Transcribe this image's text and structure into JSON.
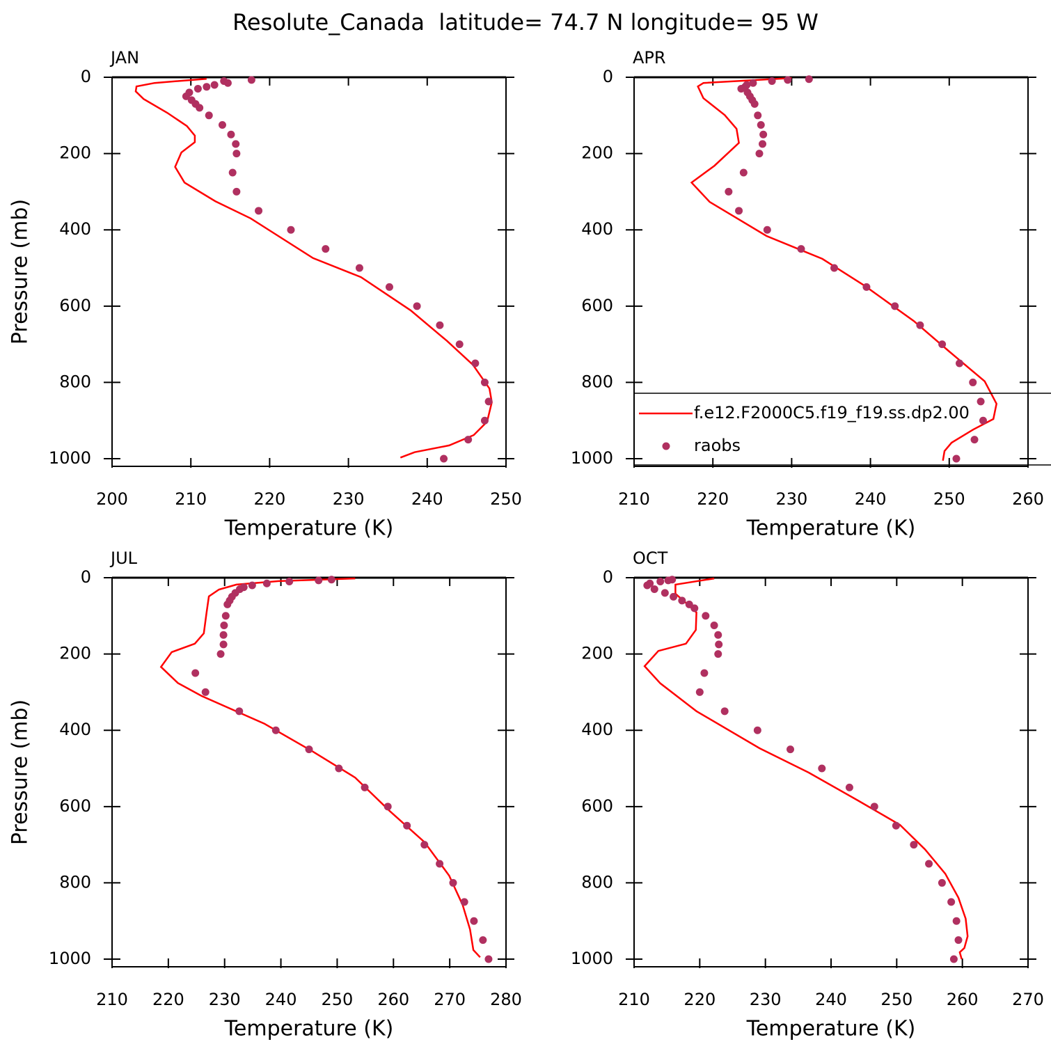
{
  "title": "Resolute_Canada  latitude= 74.7 N longitude= 95 W",
  "chart_data": [
    {
      "type": "line",
      "title": "JAN",
      "xlabel": "Temperature (K)",
      "ylabel": "Pressure (mb)",
      "xlim": [
        200,
        250
      ],
      "xticks": [
        200,
        210,
        220,
        230,
        240,
        250
      ],
      "ylim": [
        0,
        1020
      ],
      "yticks": [
        0,
        200,
        400,
        600,
        800,
        1000
      ],
      "y_inverted": true,
      "series": [
        {
          "color": "#ff0000",
          "mode": "line",
          "x": [
            212.0,
            205.4,
            203.1,
            203.0,
            204.0,
            207.0,
            209.5,
            210.5,
            210.5,
            208.8,
            208.0,
            209.2,
            213.1,
            217.6,
            225.5,
            231.6,
            237.9,
            242.5,
            245.8,
            247.9,
            248.2,
            247.6,
            245.9,
            242.8,
            238.4,
            236.6
          ],
          "y": [
            4,
            15,
            24,
            37,
            57,
            93,
            128,
            153,
            170,
            197,
            235,
            276,
            325,
            370,
            474,
            524,
            611,
            691,
            754,
            816,
            852,
            903,
            938,
            965,
            983,
            997
          ]
        },
        {
          "color": "#b03060",
          "mode": "markers",
          "x": [
            217.7,
            214.2,
            214.7,
            213.0,
            212.0,
            210.9,
            209.8,
            209.4,
            210.1,
            210.6,
            211.1,
            212.3,
            214.0,
            215.1,
            215.7,
            215.8,
            215.3,
            215.8,
            218.6,
            222.7,
            227.1,
            231.4,
            235.2,
            238.7,
            241.6,
            244.1,
            246.1,
            247.3,
            247.8,
            247.3,
            245.2,
            242.1
          ],
          "y": [
            7,
            10,
            15,
            20,
            25,
            30,
            40,
            50,
            60,
            70,
            80,
            100,
            125,
            150,
            175,
            200,
            250,
            300,
            350,
            400,
            450,
            500,
            550,
            600,
            650,
            700,
            750,
            800,
            850,
            900,
            950,
            1000
          ]
        }
      ]
    },
    {
      "type": "line",
      "title": "APR",
      "xlabel": "Temperature (K)",
      "xlim": [
        210,
        260
      ],
      "xticks": [
        210,
        220,
        230,
        240,
        250,
        260
      ],
      "ylim": [
        0,
        1020
      ],
      "yticks": [
        0,
        200,
        400,
        600,
        800,
        1000
      ],
      "y_inverted": true,
      "legend": "bottom",
      "series": [
        {
          "name": "f.e12.F2000C5.f19_f19.ss.dp2.00",
          "color": "#ff0000",
          "mode": "line",
          "x": [
            230.0,
            218.8,
            218.1,
            218.8,
            221.5,
            223.0,
            223.3,
            220.2,
            217.3,
            219.6,
            226.8,
            233.9,
            239.3,
            245.5,
            250.0,
            254.5,
            256.0,
            255.6,
            253.1,
            250.3,
            249.4,
            249.2
          ],
          "y": [
            2,
            15,
            24,
            55,
            99,
            135,
            172,
            232,
            276,
            327,
            416,
            476,
            547,
            639,
            719,
            797,
            856,
            896,
            923,
            958,
            980,
            1005
          ]
        },
        {
          "name": "raobs",
          "color": "#b03060",
          "mode": "markers",
          "x": [
            232.2,
            229.5,
            227.5,
            225.1,
            224.3,
            224.1,
            223.6,
            224.4,
            224.7,
            225.0,
            225.3,
            225.7,
            226.1,
            226.4,
            226.3,
            225.9,
            223.9,
            222.0,
            223.3,
            226.9,
            231.2,
            235.4,
            239.5,
            243.1,
            246.3,
            249.1,
            251.3,
            253.0,
            254.0,
            254.3,
            253.2,
            250.9
          ],
          "y": [
            5,
            7,
            10,
            15,
            20,
            25,
            30,
            40,
            50,
            60,
            70,
            100,
            125,
            150,
            175,
            200,
            250,
            300,
            350,
            400,
            450,
            500,
            550,
            600,
            650,
            700,
            750,
            800,
            850,
            900,
            950,
            1000
          ]
        }
      ]
    },
    {
      "type": "line",
      "title": "JUL",
      "xlabel": "Temperature (K)",
      "ylabel": "Pressure (mb)",
      "xlim": [
        210,
        280
      ],
      "xticks": [
        210,
        220,
        230,
        240,
        250,
        260,
        270,
        280
      ],
      "ylim": [
        0,
        1020
      ],
      "yticks": [
        0,
        200,
        400,
        600,
        800,
        1000
      ],
      "y_inverted": true,
      "series": [
        {
          "color": "#ff0000",
          "mode": "line",
          "x": [
            253.2,
            239.6,
            232.1,
            229.0,
            227.2,
            226.8,
            226.3,
            224.7,
            220.6,
            218.7,
            221.7,
            225.9,
            237.1,
            245.7,
            253.2,
            259.3,
            265.5,
            269.9,
            272.3,
            273.6,
            274.2,
            275.4
          ],
          "y": [
            2,
            9,
            18,
            31,
            49,
            91,
            146,
            173,
            195,
            234,
            276,
            310,
            383,
            456,
            524,
            611,
            693,
            781,
            858,
            922,
            976,
            995
          ]
        },
        {
          "color": "#b03060",
          "mode": "markers",
          "x": [
            249.0,
            246.7,
            241.5,
            237.5,
            234.9,
            233.4,
            232.7,
            231.9,
            231.3,
            230.9,
            230.5,
            230.2,
            229.9,
            229.8,
            229.8,
            229.3,
            224.8,
            226.6,
            232.6,
            239.1,
            245.0,
            250.3,
            254.9,
            259.0,
            262.4,
            265.5,
            268.2,
            270.6,
            272.6,
            274.3,
            275.9,
            276.9
          ],
          "y": [
            5,
            7,
            10,
            15,
            20,
            25,
            30,
            40,
            50,
            60,
            70,
            100,
            125,
            150,
            175,
            200,
            250,
            300,
            350,
            400,
            450,
            500,
            550,
            600,
            650,
            700,
            750,
            800,
            850,
            900,
            950,
            1000
          ]
        }
      ]
    },
    {
      "type": "line",
      "title": "OCT",
      "xlabel": "Temperature (K)",
      "xlim": [
        210,
        270
      ],
      "xticks": [
        210,
        220,
        230,
        240,
        250,
        260,
        270
      ],
      "ylim": [
        0,
        1020
      ],
      "yticks": [
        0,
        200,
        400,
        600,
        800,
        1000
      ],
      "y_inverted": true,
      "series": [
        {
          "color": "#ff0000",
          "mode": "line",
          "x": [
            222.2,
            216.3,
            216.3,
            217.9,
            219.5,
            219.4,
            217.9,
            213.7,
            211.6,
            214.0,
            219.5,
            229.1,
            236.6,
            244.1,
            250.5,
            254.3,
            257.4,
            259.4,
            260.5,
            260.8,
            260.3,
            259.6,
            259.9
          ],
          "y": [
            2,
            18,
            42,
            66,
            91,
            137,
            173,
            192,
            232,
            277,
            350,
            447,
            511,
            584,
            648,
            712,
            776,
            839,
            894,
            940,
            971,
            982,
            1000
          ]
        },
        {
          "color": "#b03060",
          "mode": "markers",
          "x": [
            215.8,
            215.2,
            214.0,
            212.4,
            212.0,
            213.1,
            214.7,
            216.0,
            217.3,
            218.4,
            219.2,
            220.9,
            222.2,
            222.8,
            222.9,
            222.8,
            220.7,
            220.0,
            223.8,
            228.8,
            233.8,
            238.6,
            242.8,
            246.6,
            249.9,
            252.6,
            254.9,
            256.9,
            258.3,
            259.1,
            259.4,
            258.7
          ],
          "y": [
            5,
            7,
            10,
            15,
            20,
            30,
            40,
            50,
            60,
            70,
            80,
            100,
            125,
            150,
            175,
            200,
            250,
            300,
            350,
            400,
            450,
            500,
            550,
            600,
            650,
            700,
            750,
            800,
            850,
            900,
            950,
            1000
          ]
        }
      ]
    }
  ]
}
